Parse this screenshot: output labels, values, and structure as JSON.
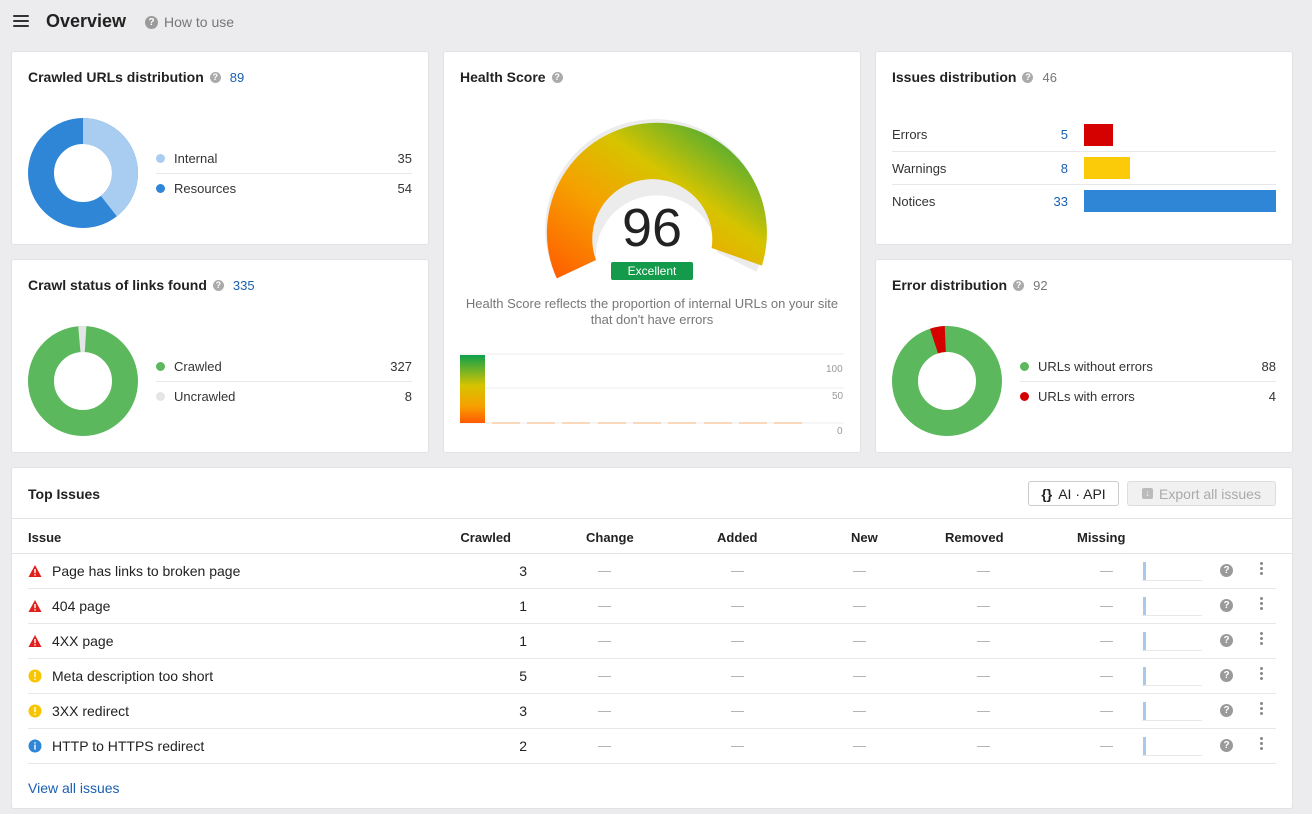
{
  "header": {
    "title": "Overview",
    "how_to_use": "How to use"
  },
  "crawled_urls": {
    "title": "Crawled URLs distribution",
    "count": "89",
    "legend": [
      {
        "label": "Internal",
        "value": "35",
        "color": "#a9cdf0"
      },
      {
        "label": "Resources",
        "value": "54",
        "color": "#2f86d6"
      }
    ]
  },
  "crawl_status": {
    "title": "Crawl status of links found",
    "count": "335",
    "legend": [
      {
        "label": "Crawled",
        "value": "327",
        "color": "#5cb85c"
      },
      {
        "label": "Uncrawled",
        "value": "8",
        "color": "#e5e5e5"
      }
    ]
  },
  "health_score": {
    "title": "Health Score",
    "score": "96",
    "rating": "Excellent",
    "score_value": 96,
    "description": "Health Score reflects the proportion of internal URLs on your site that don't have errors",
    "axis_ticks": [
      "100",
      "50",
      "0"
    ]
  },
  "issues_distribution": {
    "title": "Issues distribution",
    "count": "46",
    "rows": [
      {
        "label": "Errors",
        "value": "5",
        "color": "#d50000"
      },
      {
        "label": "Warnings",
        "value": "8",
        "color": "#fbcb0a"
      },
      {
        "label": "Notices",
        "value": "33",
        "color": "#2f86d6"
      }
    ]
  },
  "error_distribution": {
    "title": "Error distribution",
    "count": "92",
    "legend": [
      {
        "label": "URLs without errors",
        "value": "88",
        "color": "#5cb85c"
      },
      {
        "label": "URLs with errors",
        "value": "4",
        "color": "#d50000"
      }
    ]
  },
  "top_issues": {
    "title": "Top Issues",
    "ai_api_label": "AI · API",
    "export_label": "Export all issues",
    "columns": [
      "Issue",
      "Crawled",
      "Change",
      "Added",
      "New",
      "Removed",
      "Missing"
    ],
    "dash": "—",
    "rows": [
      {
        "severity": "error",
        "name": "Page has links to broken page",
        "crawled": "3"
      },
      {
        "severity": "error",
        "name": "404 page",
        "crawled": "1"
      },
      {
        "severity": "error",
        "name": "4XX page",
        "crawled": "1"
      },
      {
        "severity": "warning",
        "name": "Meta description too short",
        "crawled": "5"
      },
      {
        "severity": "warning",
        "name": "3XX redirect",
        "crawled": "3"
      },
      {
        "severity": "notice",
        "name": "HTTP to HTTPS redirect",
        "crawled": "2"
      }
    ],
    "view_all": "View all issues"
  }
}
